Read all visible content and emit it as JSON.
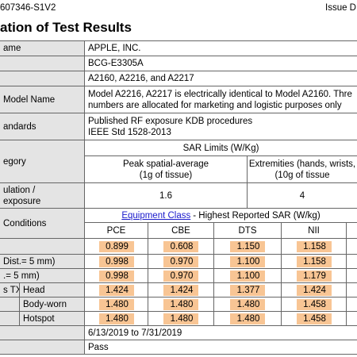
{
  "header": {
    "report_id": "607346-S1V2",
    "issue": "Issue D"
  },
  "title": "ation of Test Results",
  "info_rows": [
    {
      "label": "ame",
      "lines": [
        "APPLE, INC."
      ]
    },
    {
      "lines": [
        "BCG-E3305A"
      ]
    },
    {
      "lines": [
        "A2160, A2216, and A2217"
      ]
    },
    {
      "label": "Model Name",
      "lines": [
        "Model A2216, A2217 is electrically identical to Model A2160. Thre",
        "numbers are allocated for marketing and logistic purposes only"
      ]
    },
    {
      "label": "andards",
      "lines": [
        "Published RF exposure KDB procedures",
        "IEEE Std 1528-2013"
      ]
    }
  ],
  "sar_limits": {
    "label": "egory",
    "title": "SAR Limits (W/Kg)",
    "columns": [
      [
        "Peak spatial-average",
        "(1g of tissue)"
      ],
      [
        "Extremities (hands, wrists,",
        "(10g of tissue"
      ]
    ],
    "row_label": [
      "ulation /",
      "exposure"
    ],
    "values": [
      "1.6",
      "4"
    ]
  },
  "results": {
    "label": "Conditions",
    "link": "Equipment Class",
    "title": "- Highest Reported SAR (W/kg)",
    "columns": [
      "PCE",
      "CBE",
      "DTS",
      "NII"
    ],
    "rows": [
      {
        "values": [
          "0.899",
          "0.608",
          "1.150",
          "1.158"
        ]
      },
      {
        "label": "Dist.= 5 mm)",
        "values": [
          "0.998",
          "0.970",
          "1.100",
          "1.158"
        ]
      },
      {
        "label": ".= 5 mm)",
        "values": [
          "0.998",
          "0.970",
          "1.100",
          "1.179"
        ]
      },
      {
        "group": "s TX",
        "label": "Head",
        "values": [
          "1.424",
          "1.424",
          "1.377",
          "1.424"
        ]
      },
      {
        "label": "Body-worn",
        "values": [
          "1.480",
          "1.480",
          "1.480",
          "1.458"
        ]
      },
      {
        "label": "Hotspot",
        "values": [
          "1.480",
          "1.480",
          "1.480",
          "1.458"
        ]
      }
    ]
  },
  "date_range": "6/13/2019 to 7/31/2019",
  "result": "Pass"
}
